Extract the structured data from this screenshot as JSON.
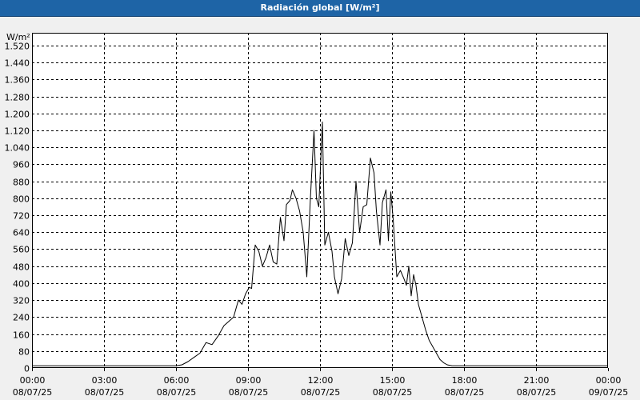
{
  "window": {
    "title": "Radiación global [W/m²]"
  },
  "chart_data": {
    "type": "line",
    "title": "Radiación global [W/m²]",
    "ylabel": "W/m²",
    "xlabel": "",
    "ylim": [
      0,
      1580
    ],
    "xlim": [
      0,
      24
    ],
    "grid": true,
    "y_ticks": [
      {
        "value": 0,
        "label": "0"
      },
      {
        "value": 80,
        "label": "80"
      },
      {
        "value": 160,
        "label": "160"
      },
      {
        "value": 240,
        "label": "240"
      },
      {
        "value": 320,
        "label": "320"
      },
      {
        "value": 400,
        "label": "400"
      },
      {
        "value": 480,
        "label": "480"
      },
      {
        "value": 560,
        "label": "560"
      },
      {
        "value": 640,
        "label": "640"
      },
      {
        "value": 720,
        "label": "720"
      },
      {
        "value": 800,
        "label": "800"
      },
      {
        "value": 880,
        "label": "880"
      },
      {
        "value": 960,
        "label": "960"
      },
      {
        "value": 1040,
        "label": "1.040"
      },
      {
        "value": 1120,
        "label": "1.120"
      },
      {
        "value": 1200,
        "label": "1.200"
      },
      {
        "value": 1280,
        "label": "1.280"
      },
      {
        "value": 1360,
        "label": "1.360"
      },
      {
        "value": 1440,
        "label": "1.440"
      },
      {
        "value": 1520,
        "label": "1.520"
      }
    ],
    "x_ticks": [
      {
        "value": 0,
        "time": "00:00",
        "date": "08/07/25"
      },
      {
        "value": 3,
        "time": "03:00",
        "date": "08/07/25"
      },
      {
        "value": 6,
        "time": "06:00",
        "date": "08/07/25"
      },
      {
        "value": 9,
        "time": "09:00",
        "date": "08/07/25"
      },
      {
        "value": 12,
        "time": "12:00",
        "date": "08/07/25"
      },
      {
        "value": 15,
        "time": "15:00",
        "date": "08/07/25"
      },
      {
        "value": 18,
        "time": "18:00",
        "date": "08/07/25"
      },
      {
        "value": 21,
        "time": "21:00",
        "date": "08/07/25"
      },
      {
        "value": 24,
        "time": "00:00",
        "date": "09/07/25"
      }
    ],
    "series": [
      {
        "color": "#000000",
        "x": [
          0,
          6.0,
          6.25,
          6.5,
          6.75,
          7.0,
          7.25,
          7.5,
          7.75,
          8.0,
          8.2,
          8.4,
          8.6,
          8.75,
          8.9,
          9.05,
          9.15,
          9.3,
          9.45,
          9.6,
          9.75,
          9.9,
          10.05,
          10.2,
          10.35,
          10.5,
          10.6,
          10.75,
          10.85,
          11.0,
          11.15,
          11.3,
          11.45,
          11.6,
          11.75,
          11.85,
          11.95,
          12.1,
          12.2,
          12.35,
          12.5,
          12.6,
          12.75,
          12.9,
          13.05,
          13.2,
          13.35,
          13.5,
          13.65,
          13.8,
          13.95,
          14.1,
          14.25,
          14.35,
          14.5,
          14.6,
          14.75,
          14.85,
          14.95,
          15.05,
          15.2,
          15.35,
          15.5,
          15.6,
          15.7,
          15.8,
          15.9,
          16.0,
          16.1,
          16.25,
          16.4,
          16.55,
          16.75,
          16.9,
          17.0,
          17.15,
          17.3,
          17.5,
          17.75,
          18.0,
          18.3,
          18.6,
          18.9,
          19.2,
          19.5,
          19.8,
          20.0,
          20.2,
          20.5,
          24.0
        ],
        "values": [
          10,
          10,
          15,
          30,
          50,
          70,
          120,
          110,
          150,
          200,
          220,
          240,
          320,
          300,
          350,
          380,
          375,
          580,
          550,
          480,
          520,
          580,
          500,
          490,
          710,
          600,
          770,
          790,
          840,
          800,
          740,
          640,
          430,
          800,
          1120,
          800,
          760,
          1160,
          580,
          640,
          550,
          430,
          350,
          420,
          610,
          530,
          590,
          880,
          640,
          760,
          770,
          990,
          920,
          740,
          580,
          780,
          840,
          600,
          830,
          700,
          430,
          460,
          420,
          390,
          480,
          340,
          440,
          390,
          300,
          240,
          180,
          130,
          90,
          60,
          40,
          25,
          15,
          10,
          10,
          10,
          10,
          10,
          10,
          10,
          10,
          10,
          10,
          10,
          10,
          10
        ]
      }
    ]
  }
}
